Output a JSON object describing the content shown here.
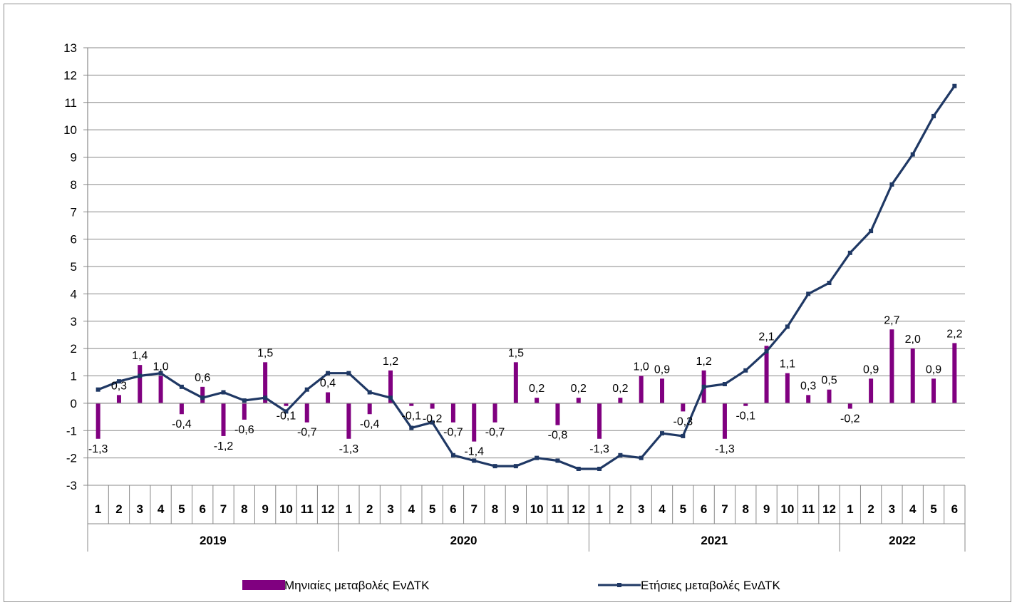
{
  "colors": {
    "bars": "#800080",
    "line": "#1f3864",
    "grid": "#888888",
    "axis": "#888888"
  },
  "chart_data": {
    "type": "bar",
    "title": "",
    "xlabel": "",
    "ylabel": "",
    "ylim": [
      -3,
      13
    ],
    "yticks": [
      -3,
      -2,
      -1,
      0,
      1,
      2,
      3,
      4,
      5,
      6,
      7,
      8,
      9,
      10,
      11,
      12,
      13
    ],
    "grid": true,
    "legend_position": "bottom",
    "categories": [
      "1",
      "2",
      "3",
      "4",
      "5",
      "6",
      "7",
      "8",
      "9",
      "10",
      "11",
      "12",
      "1",
      "2",
      "3",
      "4",
      "5",
      "6",
      "7",
      "8",
      "9",
      "10",
      "11",
      "12",
      "1",
      "2",
      "3",
      "4",
      "5",
      "6",
      "7",
      "8",
      "9",
      "10",
      "11",
      "12",
      "1",
      "2",
      "3",
      "4",
      "5",
      "6"
    ],
    "years": [
      {
        "label": "2019",
        "count": 12
      },
      {
        "label": "2020",
        "count": 12
      },
      {
        "label": "2021",
        "count": 12
      },
      {
        "label": "2022",
        "count": 6
      }
    ],
    "series": [
      {
        "name": "Μηνιαίες μεταβολές ΕνΔΤΚ",
        "type": "bar",
        "values": [
          -1.3,
          0.3,
          1.4,
          1.0,
          -0.4,
          0.6,
          -1.2,
          -0.6,
          1.5,
          -0.1,
          -0.7,
          0.4,
          -1.3,
          -0.4,
          1.2,
          -0.1,
          -0.2,
          -0.7,
          -1.4,
          -0.7,
          1.5,
          0.2,
          -0.8,
          0.2,
          -1.3,
          0.2,
          1.0,
          0.9,
          -0.3,
          1.2,
          -1.3,
          -0.1,
          2.1,
          1.1,
          0.3,
          0.5,
          -0.2,
          0.9,
          2.7,
          2.0,
          0.9,
          2.2
        ],
        "labels": [
          "-1,3",
          "0,3",
          "1,4",
          "1,0",
          "-0,4",
          "0,6",
          "-1,2",
          "-0,6",
          "1,5",
          "-0,1",
          "-0,7",
          "0,4",
          "-1,3",
          "-0,4",
          "1,2",
          "-0,1",
          "-0,2",
          "-0,7",
          "-1,4",
          "-0,7",
          "1,5",
          "0,2",
          "-0,8",
          "0,2",
          "-1,3",
          "0,2",
          "1,0",
          "0,9",
          "-0,3",
          "1,2",
          "-1,3",
          "-0,1",
          "2,1",
          "1,1",
          "0,3",
          "0,5",
          "-0,2",
          "0,9",
          "2,7",
          "2,0",
          "0,9",
          "2,2"
        ]
      },
      {
        "name": "Ετήσιες μεταβολές ΕνΔΤΚ",
        "type": "line",
        "values": [
          0.5,
          0.8,
          1.0,
          1.1,
          0.6,
          0.2,
          0.4,
          0.1,
          0.2,
          -0.3,
          0.5,
          1.1,
          1.1,
          0.4,
          0.2,
          -0.9,
          -0.7,
          -1.9,
          -2.1,
          -2.3,
          -2.3,
          -2.0,
          -2.1,
          -2.4,
          -2.4,
          -1.9,
          -2.0,
          -1.1,
          -1.2,
          0.6,
          0.7,
          1.2,
          1.9,
          2.8,
          4.0,
          4.4,
          5.5,
          6.3,
          8.0,
          9.1,
          10.5,
          11.6
        ]
      }
    ]
  }
}
